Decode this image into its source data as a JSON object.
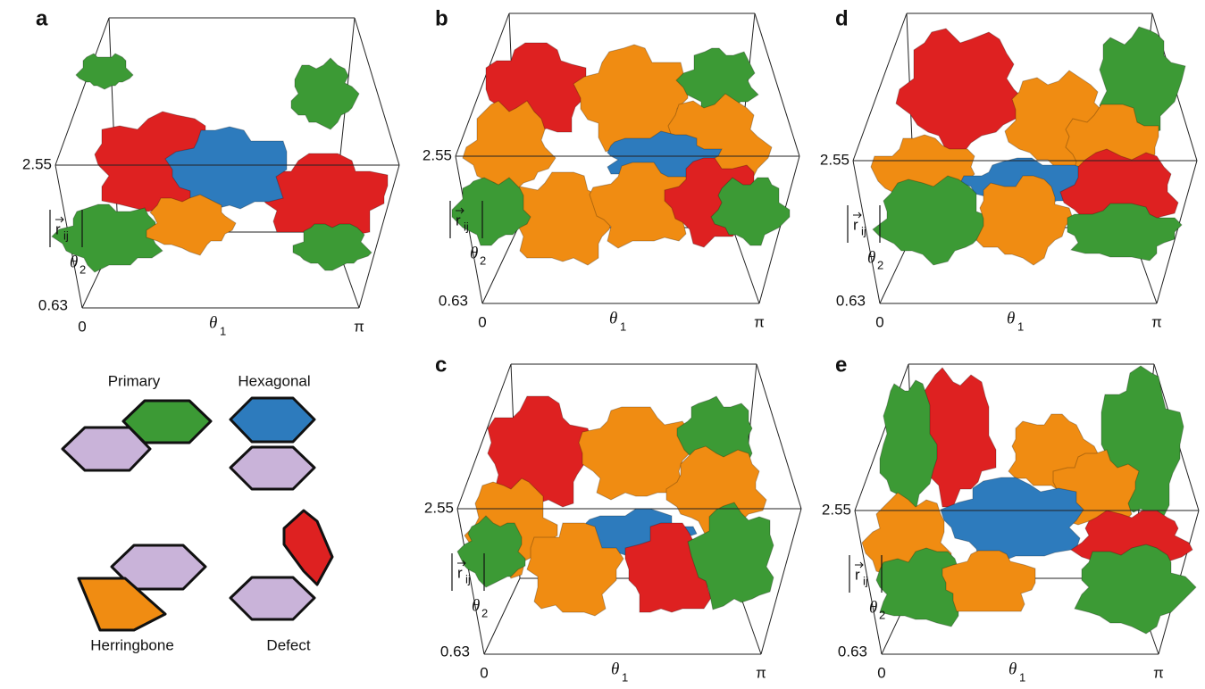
{
  "panels": [
    {
      "label": "a",
      "y_top": "2.55",
      "y_bottom": "0.63",
      "x_left": "0",
      "x_right": "π",
      "x_axis": {
        "symbol": "θ",
        "subscript": "1"
      },
      "depth_axis": {
        "symbol": "θ",
        "subscript": "2"
      },
      "y_axis": {
        "symbol": "r",
        "subscript": "ij"
      }
    },
    {
      "label": "b",
      "y_top": "2.55",
      "y_bottom": "0.63",
      "x_left": "0",
      "x_right": "π",
      "x_axis": {
        "symbol": "θ",
        "subscript": "1"
      },
      "depth_axis": {
        "symbol": "θ",
        "subscript": "2"
      },
      "y_axis": {
        "symbol": "r",
        "subscript": "ij"
      }
    },
    {
      "label": "d",
      "y_top": "2.55",
      "y_bottom": "0.63",
      "x_left": "0",
      "x_right": "π",
      "x_axis": {
        "symbol": "θ",
        "subscript": "1"
      },
      "depth_axis": {
        "symbol": "θ",
        "subscript": "2"
      },
      "y_axis": {
        "symbol": "r",
        "subscript": "ij"
      }
    },
    {
      "label": "c",
      "y_top": "2.55",
      "y_bottom": "0.63",
      "x_left": "0",
      "x_right": "π",
      "x_axis": {
        "symbol": "θ",
        "subscript": "1"
      },
      "depth_axis": {
        "symbol": "θ",
        "subscript": "2"
      },
      "y_axis": {
        "symbol": "r",
        "subscript": "ij"
      }
    },
    {
      "label": "e",
      "y_top": "2.55",
      "y_bottom": "0.63",
      "x_left": "0",
      "x_right": "π",
      "x_axis": {
        "symbol": "θ",
        "subscript": "1"
      },
      "depth_axis": {
        "symbol": "θ",
        "subscript": "2"
      },
      "y_axis": {
        "symbol": "r",
        "subscript": "ij"
      }
    }
  ],
  "legend": [
    {
      "label": "Primary"
    },
    {
      "label": "Hexagonal"
    },
    {
      "label": "Herringbone"
    },
    {
      "label": "Defect"
    }
  ]
}
